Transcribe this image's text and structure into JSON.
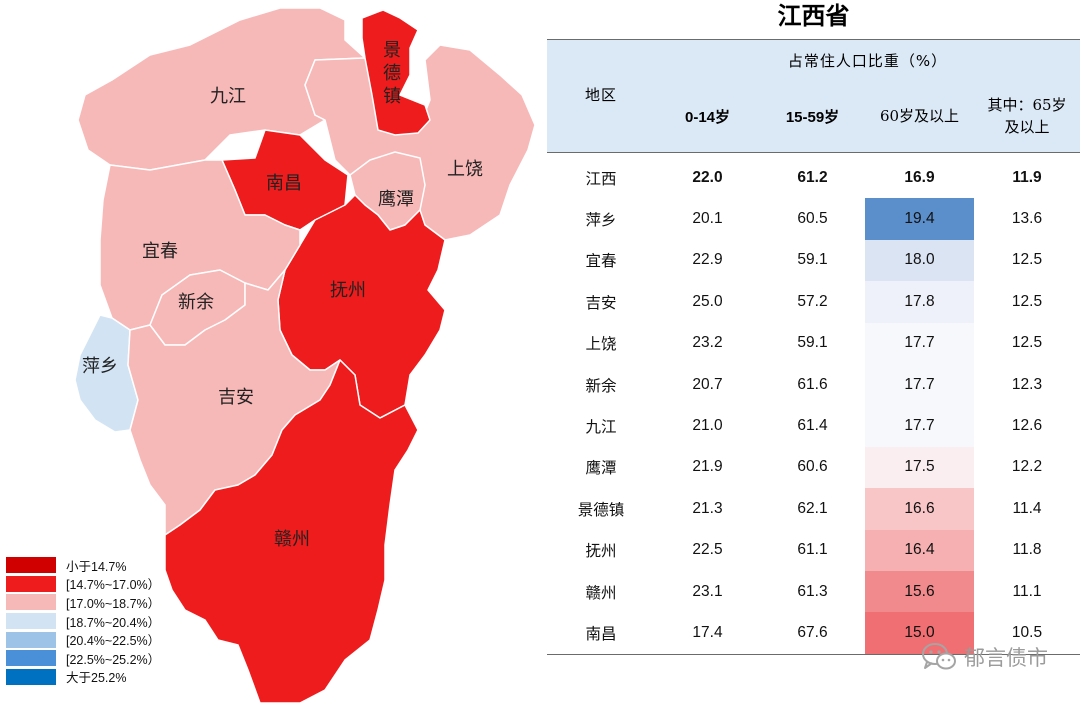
{
  "title": "江西省",
  "map": {
    "regions": [
      {
        "key": "jiujiang",
        "name": "九江",
        "class": "c3"
      },
      {
        "key": "jingdezhen",
        "name": "景德镇",
        "class": "c2"
      },
      {
        "key": "shangrao",
        "name": "上饶",
        "class": "c3"
      },
      {
        "key": "nanchang",
        "name": "南昌",
        "class": "c2"
      },
      {
        "key": "yingtan",
        "name": "鹰潭",
        "class": "c3"
      },
      {
        "key": "yichun",
        "name": "宜春",
        "class": "c3"
      },
      {
        "key": "xinyu",
        "name": "新余",
        "class": "c3"
      },
      {
        "key": "fuzhou",
        "name": "抚州",
        "class": "c2"
      },
      {
        "key": "pingxiang",
        "name": "萍乡",
        "class": "c4"
      },
      {
        "key": "jian",
        "name": "吉安",
        "class": "c3"
      },
      {
        "key": "ganzhou",
        "name": "赣州",
        "class": "c2"
      }
    ]
  },
  "legend": [
    {
      "label": "小于14.7%",
      "color": "#d00000"
    },
    {
      "label": "[14.7%~17.0%）",
      "color": "#ee1c1c"
    },
    {
      "label": "[17.0%~18.7%）",
      "color": "#f7b8b8"
    },
    {
      "label": "[18.7%~20.4%）",
      "color": "#d2e3f3"
    },
    {
      "label": "[20.4%~22.5%）",
      "color": "#9dc3e6"
    },
    {
      "label": "[22.5%~25.2%）",
      "color": "#4a90d9"
    },
    {
      "label": "大于25.2%",
      "color": "#0070c0"
    }
  ],
  "table": {
    "region_header": "地区",
    "group_header": "占常住人口比重（%）",
    "columns": [
      "0-14岁",
      "15-59岁",
      "60岁及以上",
      "其中：65岁",
      "及以上"
    ]
  },
  "chart_data": {
    "type": "table",
    "title": "江西省",
    "columns": [
      "地区",
      "0-14岁",
      "15-59岁",
      "60岁及以上",
      "其中：65岁及以上"
    ],
    "rows": [
      {
        "region": "江西",
        "c0_14": "22.0",
        "c15_59": "61.2",
        "c60": "16.9",
        "c65": "11.9",
        "bold": true
      },
      {
        "region": "萍乡",
        "c0_14": "20.1",
        "c15_59": "60.5",
        "c60": "19.4",
        "c65": "13.6",
        "color": "#5b8fcb"
      },
      {
        "region": "宜春",
        "c0_14": "22.9",
        "c15_59": "59.1",
        "c60": "18.0",
        "c65": "12.5",
        "color": "#dbe4f2"
      },
      {
        "region": "吉安",
        "c0_14": "25.0",
        "c15_59": "57.2",
        "c60": "17.8",
        "c65": "12.5",
        "color": "#eef1f9"
      },
      {
        "region": "上饶",
        "c0_14": "23.2",
        "c15_59": "59.1",
        "c60": "17.7",
        "c65": "12.5",
        "color": "#f7f8fc"
      },
      {
        "region": "新余",
        "c0_14": "20.7",
        "c15_59": "61.6",
        "c60": "17.7",
        "c65": "12.3",
        "color": "#f7f8fc"
      },
      {
        "region": "九江",
        "c0_14": "21.0",
        "c15_59": "61.4",
        "c60": "17.7",
        "c65": "12.6",
        "color": "#f7f8fc"
      },
      {
        "region": "鹰潭",
        "c0_14": "21.9",
        "c15_59": "60.6",
        "c60": "17.5",
        "c65": "12.2",
        "color": "#fbeef1"
      },
      {
        "region": "景德镇",
        "c0_14": "21.3",
        "c15_59": "62.1",
        "c60": "16.6",
        "c65": "11.4",
        "color": "#f9c6c7"
      },
      {
        "region": "抚州",
        "c0_14": "22.5",
        "c15_59": "61.1",
        "c60": "16.4",
        "c65": "11.8",
        "color": "#f7b0b1"
      },
      {
        "region": "赣州",
        "c0_14": "23.1",
        "c15_59": "61.3",
        "c60": "15.6",
        "c65": "11.1",
        "color": "#f18a8c"
      },
      {
        "region": "南昌",
        "c0_14": "17.4",
        "c15_59": "67.6",
        "c60": "15.0",
        "c65": "10.5",
        "color": "#ef6f72"
      }
    ]
  },
  "watermark": {
    "text": "郁言债市",
    "icon": "wechat-icon"
  }
}
